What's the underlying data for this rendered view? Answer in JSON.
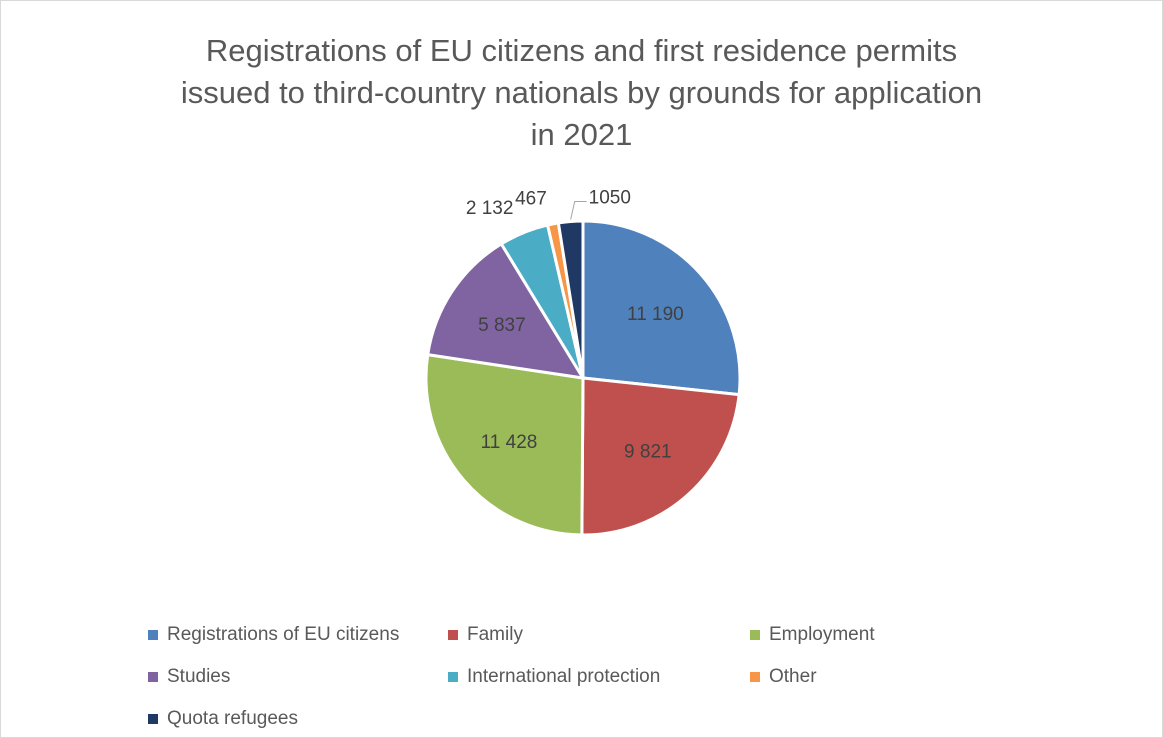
{
  "chart_data": {
    "type": "pie",
    "title_lines": [
      "Registrations of EU citizens and first residence permits",
      "issued to third-country nationals by grounds for application",
      "in 2021"
    ],
    "series": [
      {
        "name": "Registrations of EU citizens",
        "value": 11190,
        "label": "11 190",
        "color": "#4f81bd",
        "label_position": "inside"
      },
      {
        "name": "Family",
        "value": 9821,
        "label": "9 821",
        "color": "#c0504d",
        "label_position": "inside"
      },
      {
        "name": "Employment",
        "value": 11428,
        "label": "11 428",
        "color": "#9bbb59",
        "label_position": "inside"
      },
      {
        "name": "Studies",
        "value": 5837,
        "label": "5 837",
        "color": "#8064a2",
        "label_position": "inside"
      },
      {
        "name": "International protection",
        "value": 2132,
        "label": "2 132",
        "color": "#4bacc6",
        "label_position": "outside"
      },
      {
        "name": "Other",
        "value": 467,
        "label": "467",
        "color": "#f79646",
        "label_position": "outside"
      },
      {
        "name": "Quota refugees",
        "value": 1050,
        "label": "1050",
        "color": "#1f3864",
        "label_position": "outside-leader"
      }
    ],
    "legend_position": "bottom"
  }
}
